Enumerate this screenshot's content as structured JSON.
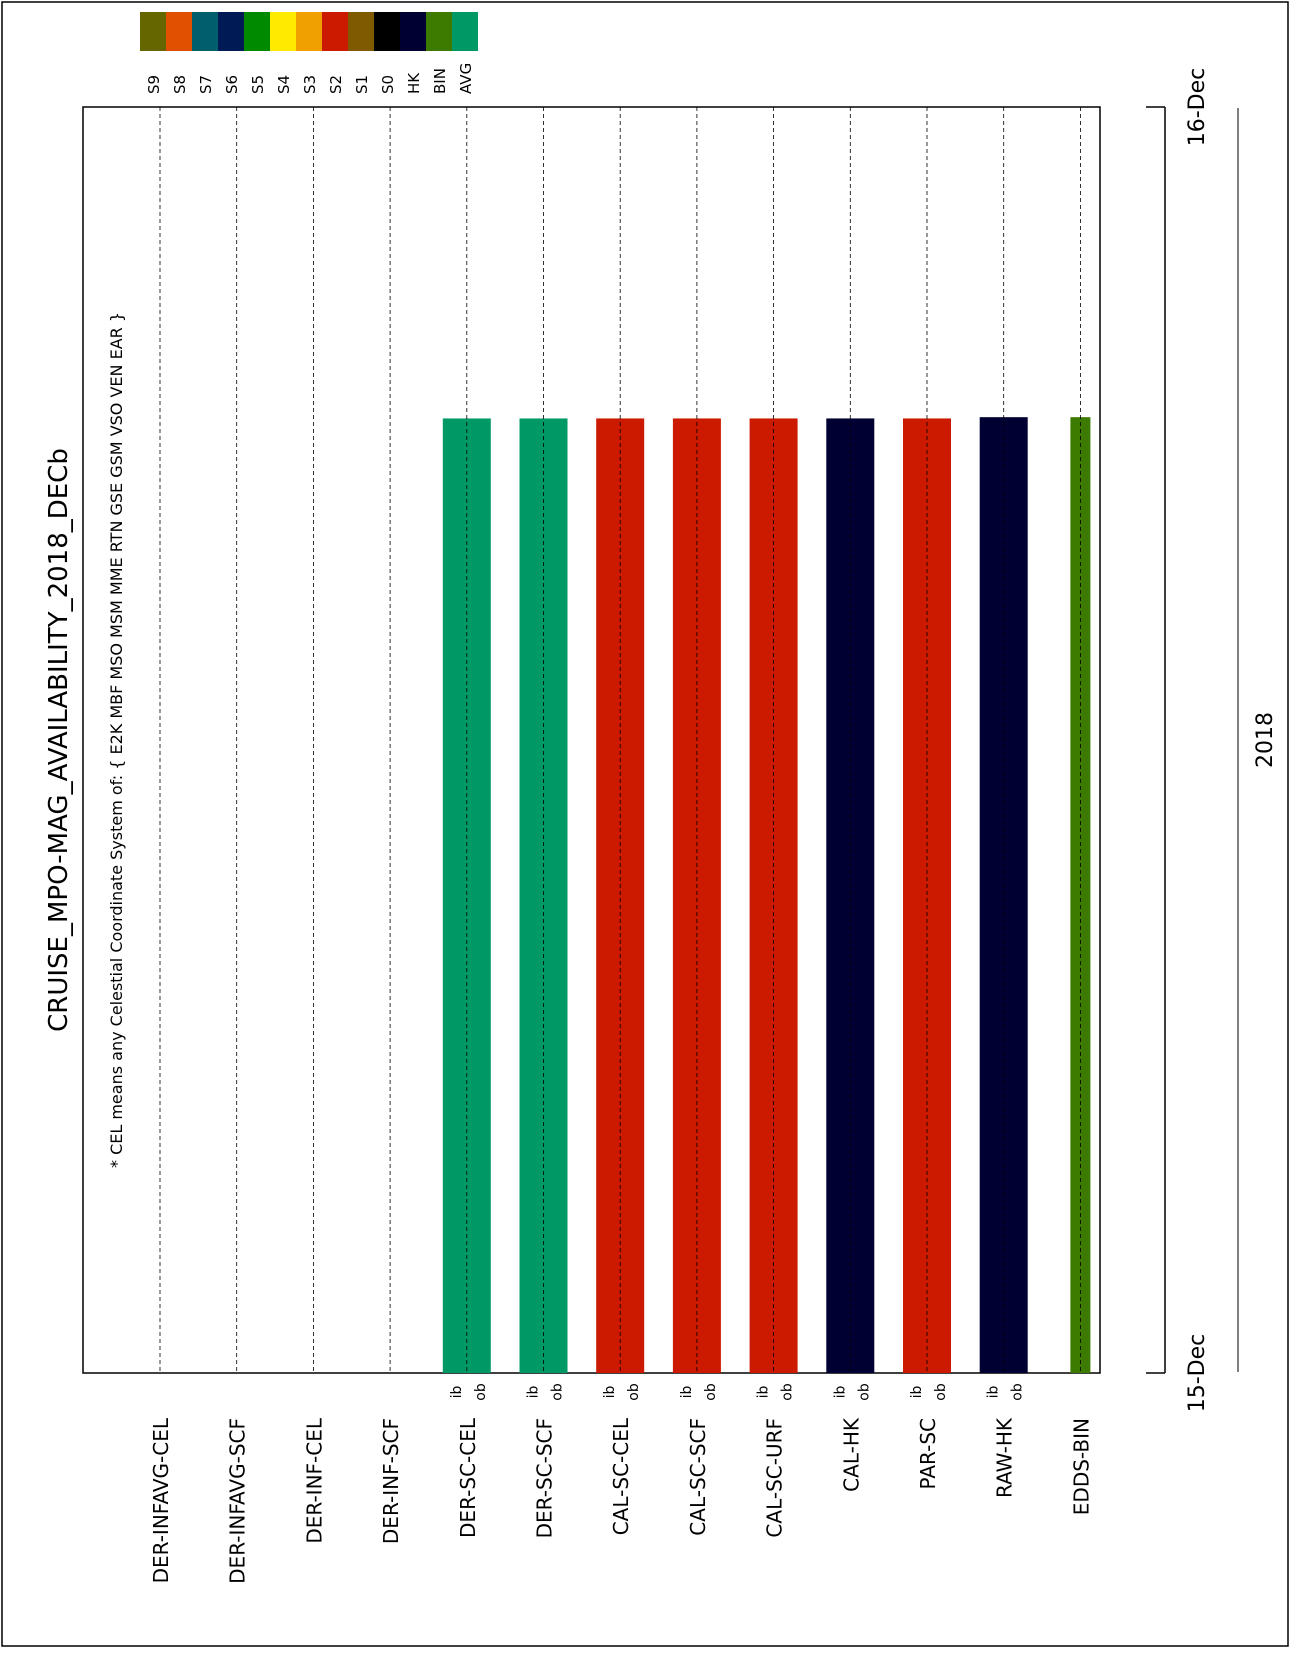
{
  "chart_data": {
    "type": "bar",
    "orientation": "rotated-90",
    "title": "CRUISE_MPO-MAG_AVAILABILITY_2018_DECb",
    "note": "* CEL means any Celestial Coordinate System of: { E2K MBF MSO MSM MME RTN GSE GSM VSO VEN EAR }",
    "time_axis": {
      "start_label": "15-Dec",
      "end_label": "16-Dec",
      "year_label": "2018",
      "range": [
        0,
        1
      ]
    },
    "legend": [
      {
        "label": "S9",
        "color": "#666600"
      },
      {
        "label": "S8",
        "color": "#e05000"
      },
      {
        "label": "S7",
        "color": "#005f6a"
      },
      {
        "label": "S6",
        "color": "#001a55"
      },
      {
        "label": "S5",
        "color": "#008a00"
      },
      {
        "label": "S4",
        "color": "#ffea00"
      },
      {
        "label": "S3",
        "color": "#f0a000"
      },
      {
        "label": "S2",
        "color": "#cc1a00"
      },
      {
        "label": "S1",
        "color": "#805a00"
      },
      {
        "label": "S0",
        "color": "#000000"
      },
      {
        "label": "HK",
        "color": "#000033"
      },
      {
        "label": "BIN",
        "color": "#3d7a00"
      },
      {
        "label": "AVG",
        "color": "#009966"
      }
    ],
    "rows": [
      {
        "label": "DER-INFAVG-CEL",
        "split": false,
        "bars": []
      },
      {
        "label": "DER-INFAVG-SCF",
        "split": false,
        "bars": []
      },
      {
        "label": "DER-INF-CEL",
        "split": false,
        "bars": []
      },
      {
        "label": "DER-INF-SCF",
        "split": false,
        "bars": []
      },
      {
        "label": "DER-SC-CEL",
        "split": true,
        "ib": "ib",
        "ob": "ob",
        "bars": [
          {
            "start": 0.0,
            "end": 0.754,
            "color": "#009966"
          }
        ]
      },
      {
        "label": "DER-SC-SCF",
        "split": true,
        "ib": "ib",
        "ob": "ob",
        "bars": [
          {
            "start": 0.0,
            "end": 0.754,
            "color": "#009966"
          }
        ]
      },
      {
        "label": "CAL-SC-CEL",
        "split": true,
        "ib": "ib",
        "ob": "ob",
        "bars": [
          {
            "start": 0.0,
            "end": 0.754,
            "color": "#cc1a00"
          }
        ]
      },
      {
        "label": "CAL-SC-SCF",
        "split": true,
        "ib": "ib",
        "ob": "ob",
        "bars": [
          {
            "start": 0.0,
            "end": 0.754,
            "color": "#cc1a00"
          }
        ]
      },
      {
        "label": "CAL-SC-URF",
        "split": true,
        "ib": "ib",
        "ob": "ob",
        "bars": [
          {
            "start": 0.0,
            "end": 0.754,
            "color": "#cc1a00"
          }
        ]
      },
      {
        "label": "CAL-HK",
        "split": true,
        "ib": "ib",
        "ob": "ob",
        "bars": [
          {
            "start": 0.0,
            "end": 0.754,
            "color": "#000033"
          }
        ]
      },
      {
        "label": "PAR-SC",
        "split": true,
        "ib": "ib",
        "ob": "ob",
        "bars": [
          {
            "start": 0.0,
            "end": 0.754,
            "color": "#cc1a00"
          }
        ]
      },
      {
        "label": "RAW-HK",
        "split": true,
        "ib": "ib",
        "ob": "ob",
        "bars": [
          {
            "start": 0.0,
            "end": 0.755,
            "color": "#000033"
          }
        ]
      },
      {
        "label": "EDDS-BIN",
        "split": false,
        "bars": [
          {
            "start": 0.0,
            "end": 0.755,
            "color": "#3d7a00"
          }
        ]
      }
    ]
  }
}
